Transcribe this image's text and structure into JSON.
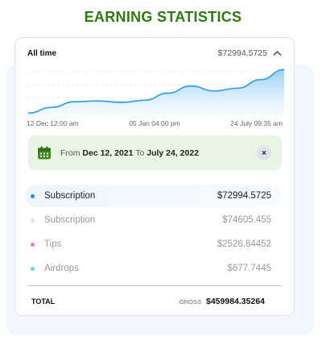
{
  "title": "EARNING STATISTICS",
  "header": {
    "range_label": "All time",
    "amount": "$72994.5725"
  },
  "chart_data": {
    "type": "area",
    "x_tick_labels": [
      "12 Dec 12:00 am",
      "05 Jan 04:00 pm",
      "24 July 09:35 am"
    ],
    "values": [
      3,
      11,
      19,
      20,
      18,
      21,
      31,
      41,
      34,
      38,
      50,
      64
    ],
    "ylim": [
      0,
      70
    ],
    "grid": "horizontal dashed",
    "color": "#3aa3e8"
  },
  "date_filter": {
    "from_label": "From",
    "from_date": "Dec 12, 2021",
    "to_label": "To",
    "to_date": "July 24, 2022",
    "close_symbol": "×"
  },
  "breakdown": [
    {
      "label": "Subscription",
      "value": "$72994.5725",
      "color": "#1f8fe0"
    },
    {
      "label": "Subscription",
      "value": "$74605.455",
      "color": "#d7ead4"
    },
    {
      "label": "Tips",
      "value": "$2526.84452",
      "color": "#e67ad6"
    },
    {
      "label": "Airdrops",
      "value": "$677.7445",
      "color": "#5fd6ea"
    }
  ],
  "total": {
    "label": "TOTAL",
    "gross_label": "GROSS",
    "gross_value": "$459984.35264"
  },
  "colors": {
    "title": "#2e7a0f",
    "accent": "#3aa3e8",
    "date_box": "#eaf4e4"
  }
}
